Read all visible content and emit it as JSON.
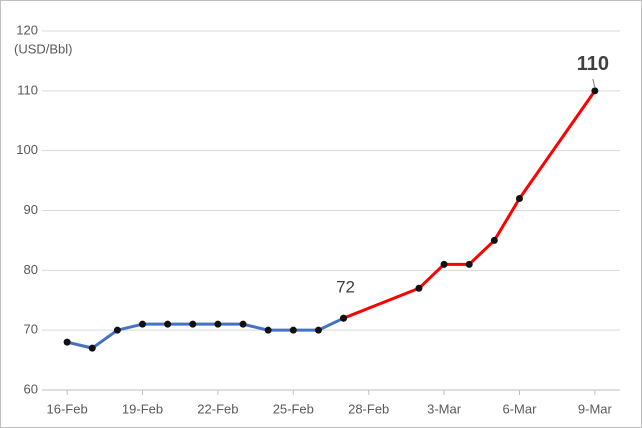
{
  "chart_data": {
    "type": "line",
    "y_label": "(USD/Bbl)",
    "xlim": [
      -1,
      22
    ],
    "xticks": [
      {
        "value": 0,
        "label": "16-Feb"
      },
      {
        "value": 3,
        "label": "19-Feb"
      },
      {
        "value": 6,
        "label": "22-Feb"
      },
      {
        "value": 9,
        "label": "25-Feb"
      },
      {
        "value": 12,
        "label": "28-Feb"
      },
      {
        "value": 15,
        "label": "3-Mar"
      },
      {
        "value": 18,
        "label": "6-Mar"
      },
      {
        "value": 21,
        "label": "9-Mar"
      }
    ],
    "ylim": [
      60,
      120
    ],
    "yticks": [
      60,
      70,
      80,
      90,
      100,
      110,
      120
    ],
    "grid": true,
    "series": [
      {
        "color": "#4472c4",
        "x": [
          0,
          1,
          2,
          3,
          4,
          5,
          6,
          7,
          8,
          9,
          10,
          11
        ],
        "values": [
          68,
          67,
          70,
          71,
          71,
          71,
          71,
          71,
          70,
          70,
          70,
          72
        ]
      },
      {
        "color": "#ff0000",
        "x": [
          11,
          14,
          15,
          16,
          17,
          18,
          21
        ],
        "values": [
          72,
          77,
          81,
          81,
          85,
          92,
          110
        ]
      }
    ]
  }
}
